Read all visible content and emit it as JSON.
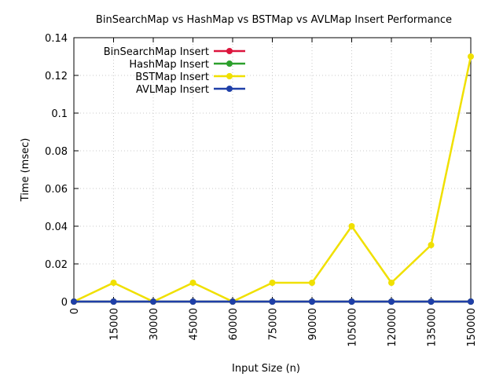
{
  "chart_data": {
    "type": "line",
    "title": "BinSearchMap vs HashMap vs BSTMap vs AVLMap Insert Performance",
    "xlabel": "Input Size (n)",
    "ylabel": "Time (msec)",
    "x": [
      0,
      15000,
      30000,
      45000,
      60000,
      75000,
      90000,
      105000,
      120000,
      135000,
      150000
    ],
    "xticks": [
      "0",
      "15000",
      "30000",
      "45000",
      "60000",
      "75000",
      "90000",
      "105000",
      "120000",
      "135000",
      "150000"
    ],
    "yticks": [
      "0",
      "0.02",
      "0.04",
      "0.06",
      "0.08",
      "0.1",
      "0.12",
      "0.14"
    ],
    "ylim": [
      0,
      0.14
    ],
    "grid": true,
    "legend_position": "top-left",
    "series": [
      {
        "name": "BinSearchMap Insert",
        "color": "#dc143c",
        "values": [
          0,
          0,
          0,
          0,
          0,
          0,
          0,
          0,
          0,
          0,
          0
        ]
      },
      {
        "name": "HashMap Insert",
        "color": "#2ca02c",
        "values": [
          0,
          0,
          0,
          0,
          0,
          0,
          0,
          0,
          0,
          0,
          0
        ]
      },
      {
        "name": "BSTMap Insert",
        "color": "#f0e000",
        "values": [
          0,
          0.01,
          0,
          0.01,
          0,
          0.01,
          0.01,
          0.04,
          0.01,
          0.03,
          0.13
        ]
      },
      {
        "name": "AVLMap Insert",
        "color": "#1f3fa8",
        "values": [
          0,
          0,
          0,
          0,
          0,
          0,
          0,
          0,
          0,
          0,
          0
        ]
      }
    ]
  }
}
